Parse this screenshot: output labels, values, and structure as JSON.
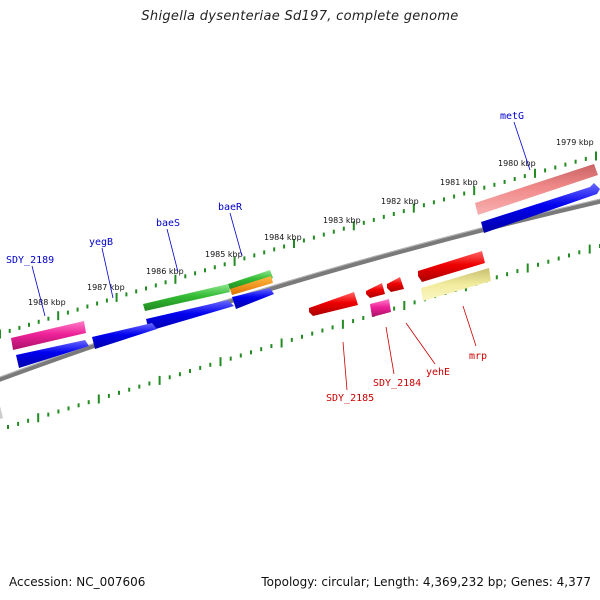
{
  "title": "Shigella dysenteriae Sd197, complete genome",
  "footer": {
    "accession": "Accession: NC_007606",
    "summary": "Topology: circular; Length: 4,369,232 bp; Genes: 4,377"
  },
  "colors": {
    "backbone": "#808080",
    "ticks": "#228B22",
    "forward_label": "#0000CC",
    "reverse_label": "#CC0000"
  },
  "kbp_labels": [
    "1979 kbp",
    "1980 kbp",
    "1981 kbp",
    "1982 kbp",
    "1983 kbp",
    "1984 kbp",
    "1985 kbp",
    "1986 kbp",
    "1987 kbp",
    "1988 kbp"
  ],
  "forward_genes": [
    "metG",
    "baeR",
    "baeS",
    "yegB",
    "SDY_2189"
  ],
  "reverse_genes": [
    "mrp",
    "yehE",
    "SDY_2184",
    "SDY_2185"
  ]
}
